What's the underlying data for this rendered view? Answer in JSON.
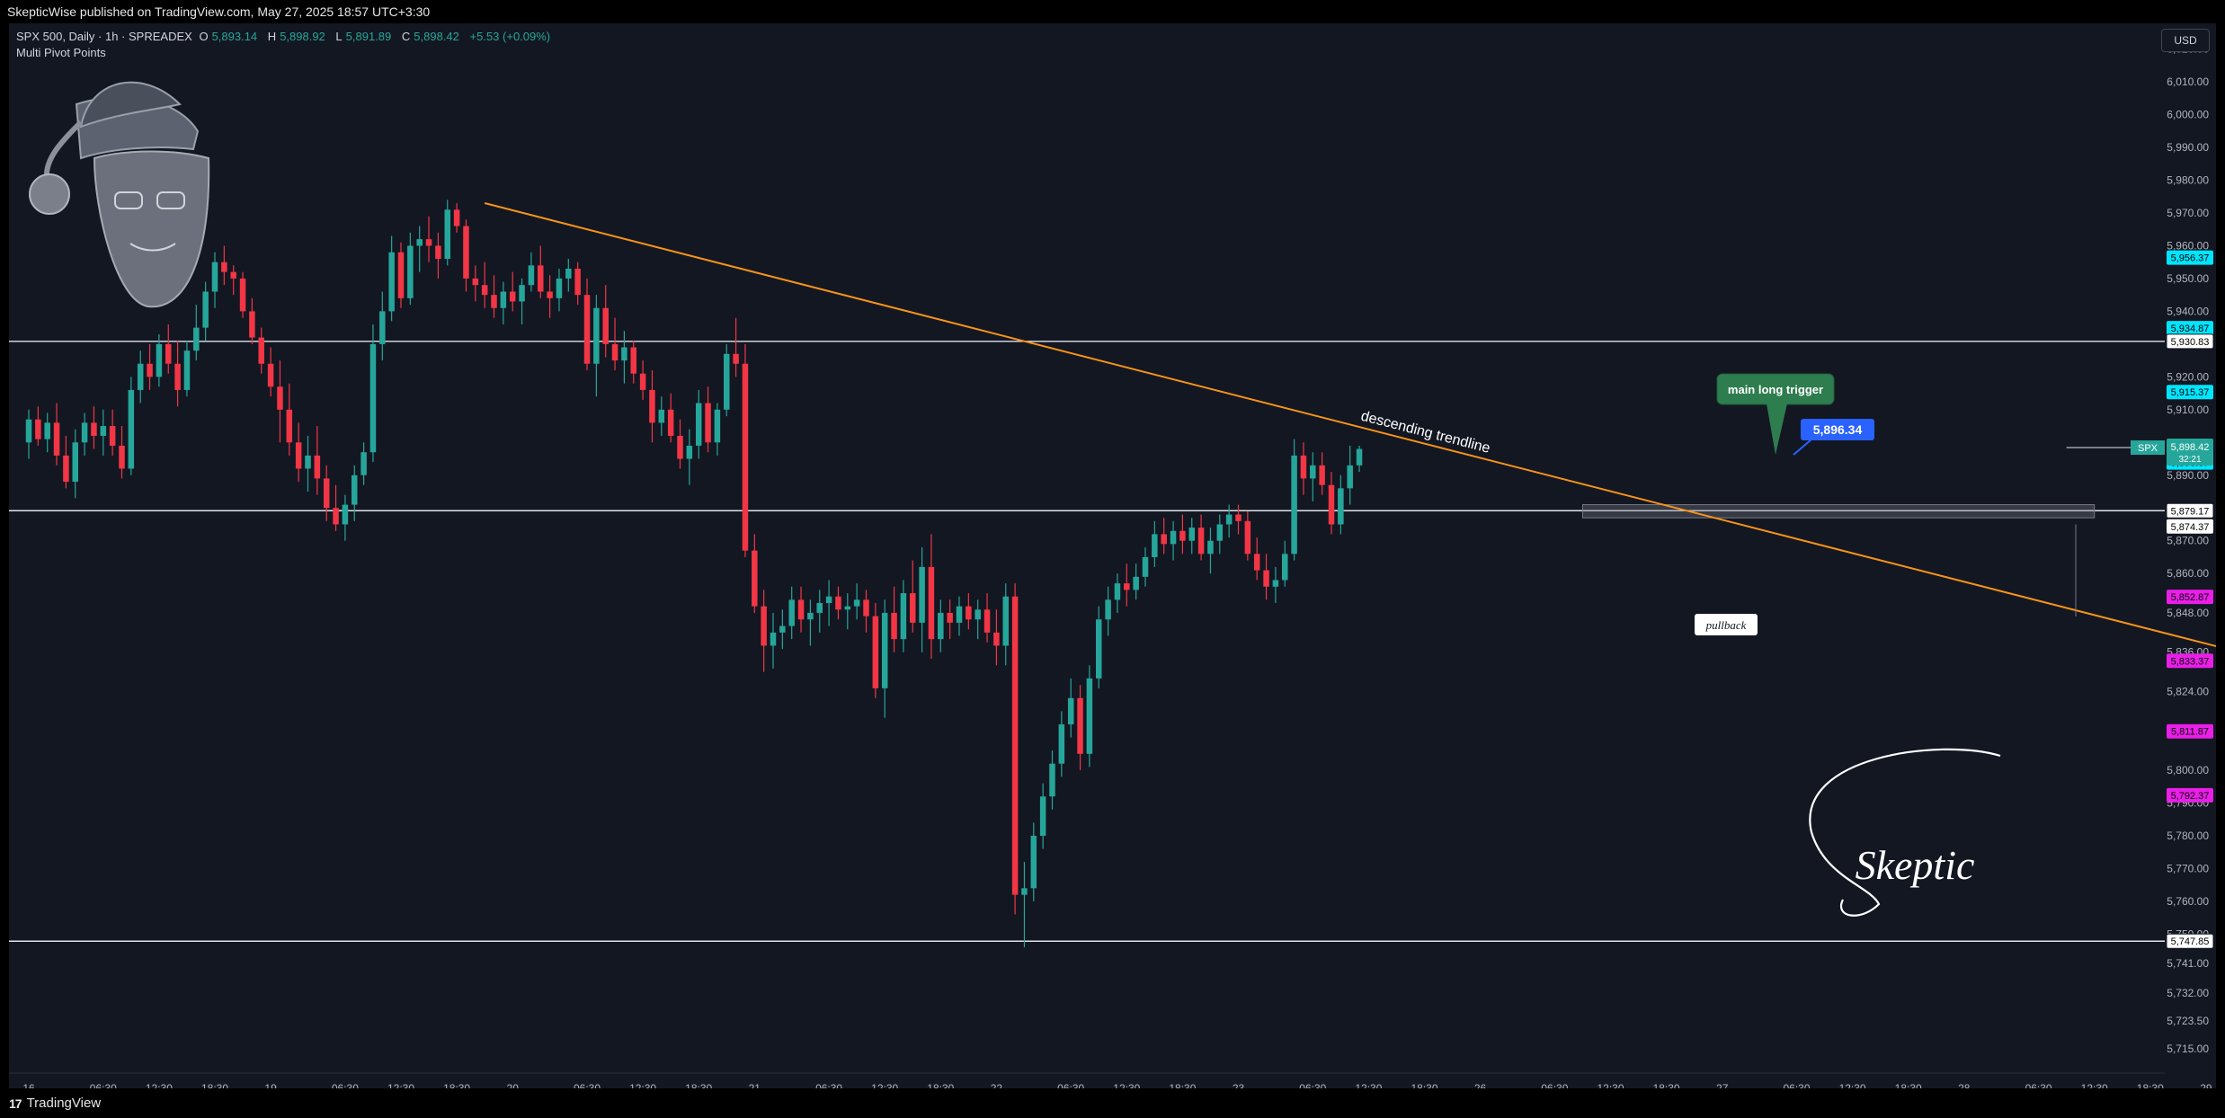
{
  "header": {
    "publisher_line": "SkepticWise published on TradingView.com, May 27, 2025 18:57 UTC+3:30"
  },
  "legend": {
    "symbol_line": "SPX 500, Daily · 1h · SPREADEX",
    "open_label": "O",
    "open": "5,893.14",
    "high_label": "H",
    "high": "5,898.92",
    "low_label": "L",
    "low": "5,891.89",
    "close_label": "C",
    "close": "5,898.42",
    "change": "+5.53 (+0.09%)",
    "indicator": "Multi Pivot Points"
  },
  "currency_button": "USD",
  "footer": {
    "brand": "TradingView",
    "logo_text": "17"
  },
  "colors": {
    "background": "#131722",
    "up": "#26a69a",
    "down": "#f23645",
    "trendline": "#f7931a",
    "pivot_cyan": "#00e5ff",
    "pivot_magenta": "#e91ee7",
    "annotation_green": "#2e7d4f",
    "price_blue": "#2962ff"
  },
  "chart_data": {
    "type": "candlestick",
    "symbol": "SPX 500",
    "timeframe": "1h",
    "ylim": [
      5712,
      6024
    ],
    "y_ticks": [
      "5,715.00",
      "5,723.50",
      "5,732.00",
      "5,741.00",
      "5,750.00",
      "5,760.00",
      "5,770.00",
      "5,780.00",
      "5,790.00",
      "5,800.00",
      "5,812.00",
      "5,824.00",
      "5,836.00",
      "5,848.00",
      "5,860.00",
      "5,870.00",
      "5,880.00",
      "5,890.00",
      "5,900.00",
      "5,910.00",
      "5,920.00",
      "5,930.00",
      "5,940.00",
      "5,950.00",
      "5,960.00",
      "5,970.00",
      "5,980.00",
      "5,990.00",
      "6,000.00",
      "6,010.00",
      "6,020.00"
    ],
    "x_ticks": [
      {
        "label": "16",
        "i": 0
      },
      {
        "label": "06:30",
        "i": 8
      },
      {
        "label": "12:30",
        "i": 14
      },
      {
        "label": "18:30",
        "i": 20
      },
      {
        "label": "19",
        "i": 26
      },
      {
        "label": "06:30",
        "i": 34
      },
      {
        "label": "12:30",
        "i": 40
      },
      {
        "label": "18:30",
        "i": 46
      },
      {
        "label": "20",
        "i": 52
      },
      {
        "label": "06:30",
        "i": 60
      },
      {
        "label": "12:30",
        "i": 66
      },
      {
        "label": "18:30",
        "i": 72
      },
      {
        "label": "21",
        "i": 78
      },
      {
        "label": "06:30",
        "i": 86
      },
      {
        "label": "12:30",
        "i": 92
      },
      {
        "label": "18:30",
        "i": 98
      },
      {
        "label": "22",
        "i": 104
      },
      {
        "label": "06:30",
        "i": 112
      },
      {
        "label": "12:30",
        "i": 118
      },
      {
        "label": "18:30",
        "i": 124
      },
      {
        "label": "23",
        "i": 130
      },
      {
        "label": "06:30",
        "i": 138
      },
      {
        "label": "12:30",
        "i": 144
      },
      {
        "label": "18:30",
        "i": 150
      },
      {
        "label": "26",
        "i": 156
      },
      {
        "label": "06:30",
        "i": 164
      },
      {
        "label": "12:30",
        "i": 170
      },
      {
        "label": "18:30",
        "i": 176
      },
      {
        "label": "27",
        "i": 182
      },
      {
        "label": "06:30",
        "i": 190
      },
      {
        "label": "12:30",
        "i": 196
      },
      {
        "label": "18:30",
        "i": 202
      },
      {
        "label": "28",
        "i": 208
      },
      {
        "label": "06:30",
        "i": 216
      },
      {
        "label": "12:30",
        "i": 222
      },
      {
        "label": "18:30",
        "i": 228
      },
      {
        "label": "29",
        "i": 234
      },
      {
        "label": "06:30",
        "i": 242
      },
      {
        "label": "12:30",
        "i": 248
      }
    ],
    "candles": [
      [
        5900,
        5910,
        5895,
        5907
      ],
      [
        5907,
        5911,
        5899,
        5901
      ],
      [
        5901,
        5909,
        5897,
        5906
      ],
      [
        5906,
        5912,
        5893,
        5896
      ],
      [
        5896,
        5902,
        5886,
        5888
      ],
      [
        5888,
        5904,
        5883,
        5900
      ],
      [
        5900,
        5909,
        5896,
        5906
      ],
      [
        5906,
        5911,
        5898,
        5902
      ],
      [
        5902,
        5910,
        5896,
        5905
      ],
      [
        5905,
        5910,
        5896,
        5899
      ],
      [
        5899,
        5905,
        5889,
        5892
      ],
      [
        5892,
        5920,
        5890,
        5916
      ],
      [
        5916,
        5928,
        5912,
        5924
      ],
      [
        5924,
        5930,
        5916,
        5920
      ],
      [
        5920,
        5933,
        5917,
        5930
      ],
      [
        5930,
        5936,
        5921,
        5924
      ],
      [
        5924,
        5931,
        5911,
        5916
      ],
      [
        5916,
        5931,
        5914,
        5928
      ],
      [
        5928,
        5942,
        5925,
        5935
      ],
      [
        5935,
        5949,
        5931,
        5946
      ],
      [
        5946,
        5958,
        5941,
        5955
      ],
      [
        5955,
        5960,
        5948,
        5952
      ],
      [
        5952,
        5954,
        5945,
        5950
      ],
      [
        5950,
        5952,
        5938,
        5940
      ],
      [
        5940,
        5944,
        5930,
        5932
      ],
      [
        5932,
        5935,
        5921,
        5924
      ],
      [
        5924,
        5929,
        5914,
        5917
      ],
      [
        5917,
        5925,
        5900,
        5910
      ],
      [
        5910,
        5918,
        5896,
        5900
      ],
      [
        5900,
        5906,
        5888,
        5892
      ],
      [
        5892,
        5902,
        5885,
        5896
      ],
      [
        5896,
        5905,
        5884,
        5889
      ],
      [
        5889,
        5893,
        5876,
        5880
      ],
      [
        5880,
        5887,
        5873,
        5875
      ],
      [
        5875,
        5884,
        5870,
        5881
      ],
      [
        5881,
        5893,
        5876,
        5890
      ],
      [
        5890,
        5900,
        5887,
        5897
      ],
      [
        5897,
        5936,
        5894,
        5930
      ],
      [
        5930,
        5946,
        5925,
        5940
      ],
      [
        5940,
        5963,
        5937,
        5958
      ],
      [
        5958,
        5961,
        5941,
        5944
      ],
      [
        5944,
        5964,
        5942,
        5960
      ],
      [
        5960,
        5966,
        5952,
        5962
      ],
      [
        5962,
        5969,
        5955,
        5960
      ],
      [
        5960,
        5964,
        5950,
        5956
      ],
      [
        5956,
        5974,
        5954,
        5971
      ],
      [
        5971,
        5973,
        5964,
        5966
      ],
      [
        5966,
        5968,
        5946,
        5950
      ],
      [
        5950,
        5954,
        5943,
        5948
      ],
      [
        5948,
        5955,
        5941,
        5945
      ],
      [
        5945,
        5951,
        5938,
        5941
      ],
      [
        5941,
        5949,
        5936,
        5946
      ],
      [
        5946,
        5952,
        5940,
        5943
      ],
      [
        5943,
        5950,
        5936,
        5948
      ],
      [
        5948,
        5958,
        5946,
        5954
      ],
      [
        5954,
        5960,
        5944,
        5946
      ],
      [
        5946,
        5951,
        5938,
        5944
      ],
      [
        5944,
        5953,
        5940,
        5950
      ],
      [
        5950,
        5956,
        5946,
        5953
      ],
      [
        5953,
        5955,
        5942,
        5945
      ],
      [
        5945,
        5950,
        5922,
        5924
      ],
      [
        5924,
        5945,
        5914,
        5941
      ],
      [
        5941,
        5948,
        5926,
        5930
      ],
      [
        5930,
        5938,
        5922,
        5925
      ],
      [
        5925,
        5934,
        5918,
        5929
      ],
      [
        5929,
        5931,
        5918,
        5921
      ],
      [
        5921,
        5925,
        5913,
        5916
      ],
      [
        5916,
        5922,
        5900,
        5906
      ],
      [
        5906,
        5914,
        5902,
        5910
      ],
      [
        5910,
        5915,
        5900,
        5902
      ],
      [
        5902,
        5907,
        5892,
        5895
      ],
      [
        5895,
        5904,
        5887,
        5899
      ],
      [
        5899,
        5916,
        5895,
        5912
      ],
      [
        5912,
        5917,
        5897,
        5900
      ],
      [
        5900,
        5912,
        5896,
        5910
      ],
      [
        5910,
        5930,
        5908,
        5927
      ],
      [
        5927,
        5938,
        5920,
        5924
      ],
      [
        5924,
        5930,
        5865,
        5867
      ],
      [
        5867,
        5872,
        5848,
        5850
      ],
      [
        5850,
        5855,
        5830,
        5838
      ],
      [
        5838,
        5848,
        5831,
        5842
      ],
      [
        5842,
        5849,
        5837,
        5844
      ],
      [
        5844,
        5856,
        5840,
        5852
      ],
      [
        5852,
        5856,
        5842,
        5846
      ],
      [
        5846,
        5852,
        5838,
        5848
      ],
      [
        5848,
        5855,
        5842,
        5851
      ],
      [
        5851,
        5858,
        5844,
        5853
      ],
      [
        5853,
        5856,
        5846,
        5849
      ],
      [
        5849,
        5854,
        5843,
        5850
      ],
      [
        5850,
        5857,
        5846,
        5852
      ],
      [
        5852,
        5855,
        5842,
        5847
      ],
      [
        5847,
        5851,
        5822,
        5825
      ],
      [
        5825,
        5852,
        5816,
        5848
      ],
      [
        5848,
        5856,
        5836,
        5840
      ],
      [
        5840,
        5858,
        5836,
        5854
      ],
      [
        5854,
        5864,
        5842,
        5845
      ],
      [
        5845,
        5868,
        5836,
        5862
      ],
      [
        5862,
        5872,
        5834,
        5840
      ],
      [
        5840,
        5852,
        5836,
        5848
      ],
      [
        5848,
        5852,
        5840,
        5845
      ],
      [
        5845,
        5853,
        5841,
        5850
      ],
      [
        5850,
        5854,
        5843,
        5846
      ],
      [
        5846,
        5852,
        5840,
        5849
      ],
      [
        5849,
        5854,
        5839,
        5842
      ],
      [
        5842,
        5849,
        5832,
        5838
      ],
      [
        5838,
        5857,
        5832,
        5853
      ],
      [
        5853,
        5857,
        5756,
        5762
      ],
      [
        5762,
        5772,
        5746,
        5764
      ],
      [
        5764,
        5784,
        5760,
        5780
      ],
      [
        5780,
        5796,
        5776,
        5792
      ],
      [
        5792,
        5806,
        5788,
        5802
      ],
      [
        5802,
        5818,
        5798,
        5814
      ],
      [
        5814,
        5828,
        5810,
        5822
      ],
      [
        5822,
        5826,
        5800,
        5805
      ],
      [
        5805,
        5832,
        5801,
        5828
      ],
      [
        5828,
        5850,
        5825,
        5846
      ],
      [
        5846,
        5856,
        5841,
        5852
      ],
      [
        5852,
        5860,
        5848,
        5857
      ],
      [
        5857,
        5863,
        5850,
        5855
      ],
      [
        5855,
        5863,
        5852,
        5859
      ],
      [
        5859,
        5868,
        5856,
        5865
      ],
      [
        5865,
        5876,
        5862,
        5872
      ],
      [
        5872,
        5877,
        5866,
        5869
      ],
      [
        5869,
        5876,
        5864,
        5873
      ],
      [
        5873,
        5878,
        5866,
        5870
      ],
      [
        5870,
        5877,
        5866,
        5874
      ],
      [
        5874,
        5878,
        5864,
        5866
      ],
      [
        5866,
        5874,
        5860,
        5870
      ],
      [
        5870,
        5878,
        5866,
        5875
      ],
      [
        5875,
        5881,
        5871,
        5878
      ],
      [
        5878,
        5881,
        5872,
        5876
      ],
      [
        5876,
        5879,
        5864,
        5866
      ],
      [
        5866,
        5871,
        5858,
        5861
      ],
      [
        5861,
        5866,
        5852,
        5856
      ],
      [
        5856,
        5862,
        5851,
        5858
      ],
      [
        5858,
        5870,
        5856,
        5866
      ],
      [
        5866,
        5901,
        5864,
        5896
      ],
      [
        5896,
        5900,
        5884,
        5889
      ],
      [
        5889,
        5897,
        5882,
        5893
      ],
      [
        5893,
        5897,
        5884,
        5887
      ],
      [
        5887,
        5891,
        5872,
        5875
      ],
      [
        5875,
        5890,
        5872,
        5886
      ],
      [
        5886,
        5899,
        5881,
        5893
      ],
      [
        5893,
        5899,
        5891,
        5898
      ]
    ],
    "trendline": {
      "label": "descending trendline",
      "from": {
        "i": 49,
        "price": 5973
      },
      "to": {
        "i": 250,
        "price": 5827
      }
    },
    "horizontal_lines": [
      5930.83,
      5879.17,
      5747.85
    ],
    "trigger_line": 5898.42,
    "zone": {
      "from_i": 167,
      "to_i": 222,
      "top": 5881,
      "bottom": 5877
    },
    "pivots": [
      {
        "price": 5956.37,
        "color": "cyan",
        "label": "5,956.37"
      },
      {
        "price": 5934.87,
        "color": "cyan",
        "label": "5,934.87"
      },
      {
        "price": 5915.37,
        "color": "cyan",
        "label": "5,915.37"
      },
      {
        "price": 5893.87,
        "color": "cyan",
        "label": "5,893.87"
      },
      {
        "price": 5874.37,
        "color": "white",
        "label": "5,874.37"
      },
      {
        "price": 5852.87,
        "color": "magenta",
        "label": "5,852.87"
      },
      {
        "price": 5833.37,
        "color": "magenta",
        "label": "5,833.37"
      },
      {
        "price": 5811.87,
        "color": "magenta",
        "label": "5,811.87"
      },
      {
        "price": 5792.37,
        "color": "magenta",
        "label": "5,792.37"
      }
    ],
    "price_labels": [
      {
        "price": 5930.83,
        "text": "5,930.83"
      },
      {
        "price": 5896.34,
        "text": "5,896.34"
      },
      {
        "price": 5879.17,
        "text": "5,879.17"
      },
      {
        "price": 5747.85,
        "text": "5,747.85"
      }
    ],
    "current_price": {
      "symbol": "SPX",
      "price": 5898.42,
      "text": "5,898.42",
      "countdown": "32:21"
    },
    "annotations": {
      "trigger_callout": "main long trigger",
      "price_badge": "5,896.34",
      "pullback": "pullback",
      "signature": "Skeptic"
    }
  }
}
